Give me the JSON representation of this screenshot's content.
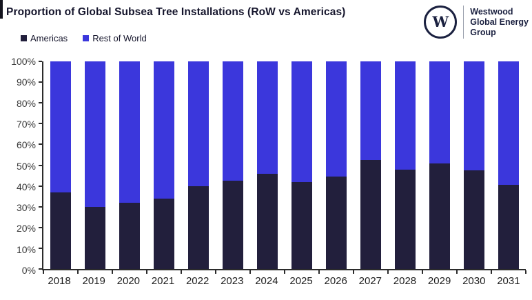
{
  "title": "Proportion of Global Subsea Tree Installations (RoW vs Americas)",
  "logo": {
    "monogram": "W",
    "name_lines": [
      "Westwood",
      "Global Energy",
      "Group"
    ]
  },
  "legend": {
    "items": [
      {
        "label": "Americas",
        "color": "#221f3c"
      },
      {
        "label": "Rest of World",
        "color": "#3b37dc"
      }
    ]
  },
  "colors": {
    "americas": "#221f3c",
    "rest_of_world": "#3b37dc",
    "axis_line": "#2b2b2b",
    "tick_label_text": "#3a3a3a",
    "title_text": "#14142b",
    "logo_navy": "#1b2140"
  },
  "chart_data": {
    "type": "bar",
    "variant": "stacked-100-percent",
    "title": "Proportion of Global Subsea Tree Installations (RoW vs Americas)",
    "categories": [
      "2018",
      "2019",
      "2020",
      "2021",
      "2022",
      "2023",
      "2024",
      "2025",
      "2026",
      "2027",
      "2028",
      "2029",
      "2030",
      "2031"
    ],
    "series": [
      {
        "name": "Americas",
        "color": "#221f3c",
        "values": [
          37,
          30,
          32,
          34,
          40,
          42.5,
          46,
          42,
          44.5,
          52.5,
          48,
          51,
          47.5,
          40.5
        ]
      },
      {
        "name": "Rest of World",
        "color": "#3b37dc",
        "values": [
          63,
          70,
          68,
          66,
          60,
          57.5,
          54,
          58,
          55.5,
          47.5,
          52,
          49,
          52.5,
          59.5
        ]
      }
    ],
    "unit": "%",
    "xlabel": "",
    "ylabel": "",
    "ylim": [
      0,
      100
    ],
    "y_ticks": [
      "100%",
      "90%",
      "80%",
      "70%",
      "60%",
      "50%",
      "40%",
      "30%",
      "20%",
      "10%",
      "0%"
    ],
    "grid": false,
    "legend_position": "top-left"
  }
}
